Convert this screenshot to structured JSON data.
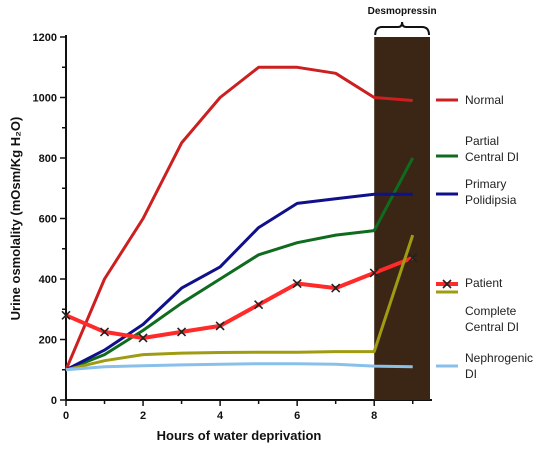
{
  "chart_data": {
    "type": "line",
    "xlabel": "Hours of water deprivation",
    "ylabel": "Urine osmolality (mOsm/Kg H₂O)",
    "xlim": [
      0,
      9.5
    ],
    "ylim": [
      0,
      1200
    ],
    "x_ticks": [
      0,
      2,
      4,
      6,
      8
    ],
    "y_ticks": [
      0,
      200,
      400,
      600,
      800,
      1000,
      1200
    ],
    "grid": false,
    "legend_position": "right",
    "annotation": {
      "label": "Desmopressin",
      "x_start": 8,
      "x_end": 10,
      "color": "#3b2514"
    },
    "series": [
      {
        "name": "Normal",
        "color": "#cc1f1f",
        "label_lines": [
          "Normal"
        ],
        "points": [
          [
            0,
            100
          ],
          [
            1,
            400
          ],
          [
            2,
            600
          ],
          [
            3,
            850
          ],
          [
            4,
            1000
          ],
          [
            5,
            1100
          ],
          [
            6,
            1100
          ],
          [
            7,
            1080
          ],
          [
            8,
            1000
          ],
          [
            9,
            990
          ]
        ]
      },
      {
        "name": "Partial Central DI",
        "color": "#0f6b1e",
        "label_lines": [
          "Partial",
          "Central DI"
        ],
        "points": [
          [
            0,
            100
          ],
          [
            1,
            150
          ],
          [
            2,
            230
          ],
          [
            3,
            320
          ],
          [
            4,
            400
          ],
          [
            5,
            480
          ],
          [
            6,
            520
          ],
          [
            7,
            545
          ],
          [
            8,
            560
          ],
          [
            9,
            800
          ]
        ]
      },
      {
        "name": "Primary Polidipsia",
        "color": "#10108a",
        "label_lines": [
          "Primary",
          "Polidipsia"
        ],
        "points": [
          [
            0,
            100
          ],
          [
            1,
            165
          ],
          [
            2,
            250
          ],
          [
            3,
            370
          ],
          [
            4,
            440
          ],
          [
            5,
            570
          ],
          [
            6,
            650
          ],
          [
            7,
            665
          ],
          [
            8,
            680
          ],
          [
            9,
            680
          ]
        ]
      },
      {
        "name": "Patient",
        "color": "#ff2a2a",
        "label_lines": [
          "Patient"
        ],
        "marker": "x",
        "points": [
          [
            0,
            280
          ],
          [
            1,
            225
          ],
          [
            2,
            205
          ],
          [
            3,
            225
          ],
          [
            4,
            245
          ],
          [
            5,
            315
          ],
          [
            6,
            385
          ],
          [
            7,
            370
          ],
          [
            8,
            420
          ],
          [
            9,
            470
          ]
        ]
      },
      {
        "name": "Complete Central DI",
        "color": "#a09c12",
        "label_lines": [
          "Complete",
          "Central DI"
        ],
        "points": [
          [
            0,
            100
          ],
          [
            1,
            130
          ],
          [
            2,
            150
          ],
          [
            3,
            155
          ],
          [
            4,
            157
          ],
          [
            5,
            158
          ],
          [
            6,
            158
          ],
          [
            7,
            160
          ],
          [
            8,
            160
          ],
          [
            9,
            545
          ]
        ]
      },
      {
        "name": "Nephrogenic DI",
        "color": "#89c0ea",
        "label_lines": [
          "Nephrogenic",
          "DI"
        ],
        "points": [
          [
            0,
            100
          ],
          [
            1,
            110
          ],
          [
            2,
            113
          ],
          [
            3,
            116
          ],
          [
            4,
            118
          ],
          [
            5,
            120
          ],
          [
            6,
            120
          ],
          [
            7,
            118
          ],
          [
            8,
            112
          ],
          [
            9,
            110
          ]
        ]
      }
    ]
  }
}
